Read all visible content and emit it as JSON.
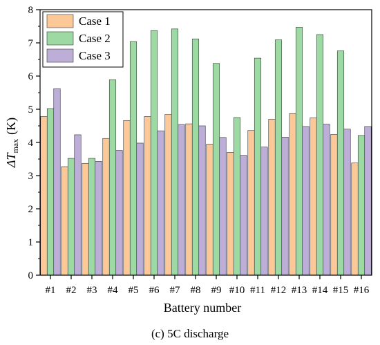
{
  "caption": "(c) 5C discharge",
  "chart_data": {
    "type": "bar",
    "xlabel": "Battery number",
    "ylabel": "ΔT",
    "ylabel_sub": "max",
    "ylabel_unit": "(K)",
    "ylim": [
      0,
      8
    ],
    "yticks": [
      "0",
      "1",
      "2",
      "3",
      "4",
      "5",
      "6",
      "7",
      "8"
    ],
    "categories": [
      "#1",
      "#2",
      "#3",
      "#4",
      "#5",
      "#6",
      "#7",
      "#8",
      "#9",
      "#10",
      "#11",
      "#12",
      "#13",
      "#14",
      "#15",
      "#16"
    ],
    "legend_position": "top-left",
    "series": [
      {
        "name": "Case 1",
        "color": "#fdc897",
        "values": [
          4.78,
          3.27,
          3.37,
          4.12,
          4.66,
          4.78,
          4.84,
          4.56,
          3.95,
          3.7,
          4.36,
          4.7,
          4.87,
          4.74,
          4.24,
          3.38
        ]
      },
      {
        "name": "Case 2",
        "color": "#9dd9a2",
        "values": [
          5.02,
          3.52,
          3.52,
          5.89,
          7.04,
          7.37,
          7.42,
          7.12,
          6.38,
          4.75,
          6.54,
          7.09,
          7.47,
          7.25,
          6.76,
          4.21
        ]
      },
      {
        "name": "Case 3",
        "color": "#bcaed6",
        "values": [
          5.62,
          4.23,
          3.43,
          3.76,
          3.98,
          4.35,
          4.54,
          4.5,
          4.15,
          3.61,
          3.86,
          4.16,
          4.48,
          4.55,
          4.4,
          4.48
        ]
      }
    ]
  }
}
